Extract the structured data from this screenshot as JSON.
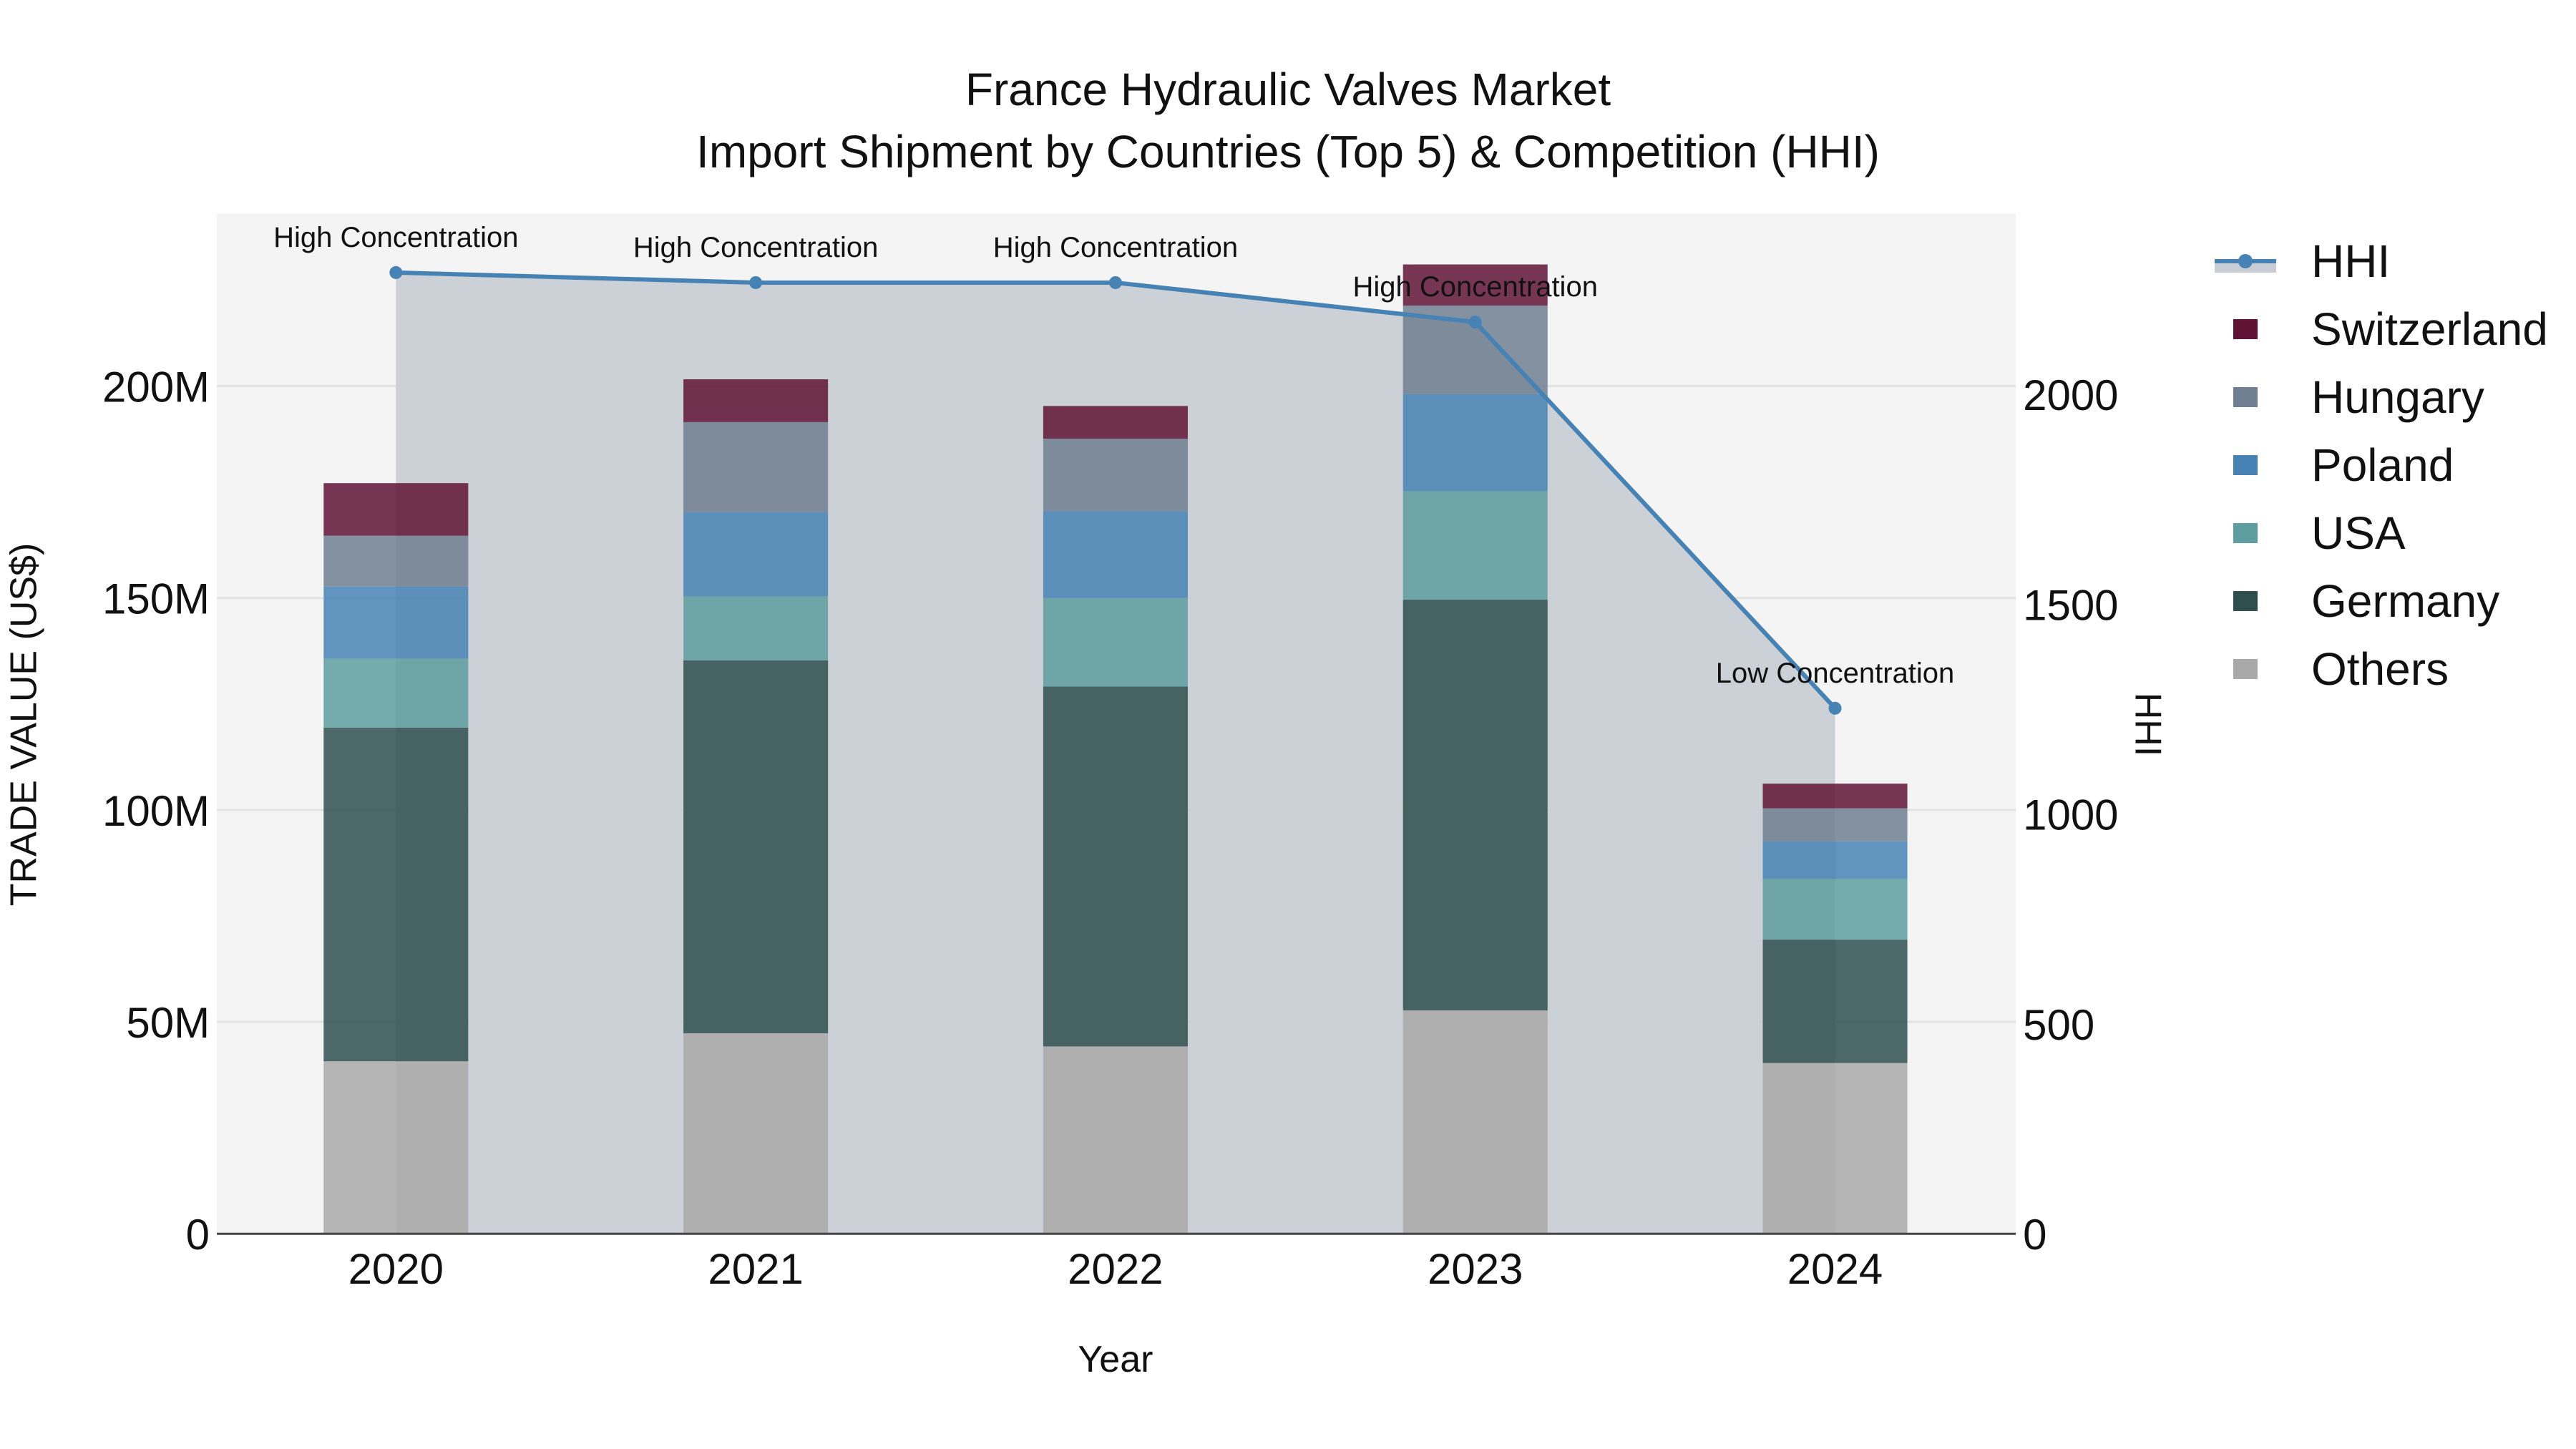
{
  "title_line1": "France Hydraulic Valves Market",
  "title_line2": "Import Shipment by Countries (Top 5) & Competition (HHI)",
  "colors": {
    "Switzerland": "#5f1436",
    "Hungary": "#707f91",
    "Poland": "#4682b4",
    "USA": "#5f9ea0",
    "Germany": "#2f4f4f",
    "Others": "#a9a9a9",
    "HHI_line": "#4682b4",
    "HHI_fill": "#c8ccd4",
    "plot_bg": "#f4f4f4"
  },
  "legend": [
    "HHI",
    "Switzerland",
    "Hungary",
    "Poland",
    "USA",
    "Germany",
    "Others"
  ],
  "chart_data": {
    "type": "bar",
    "stacked": true,
    "title": "France Hydraulic Valves Market — Import Shipment by Countries (Top 5) & Competition (HHI)",
    "xlabel": "Year",
    "ylabel": "TRADE VALUE (US$)",
    "y2label": "HHI",
    "categories": [
      "2020",
      "2021",
      "2022",
      "2023",
      "2024"
    ],
    "ylim": [
      0,
      240000000
    ],
    "y2lim": [
      0,
      2430
    ],
    "yticks": [
      "0",
      "50M",
      "100M",
      "150M",
      "200M"
    ],
    "y2ticks": [
      "0",
      "500",
      "1000",
      "1500",
      "2000"
    ],
    "series": [
      {
        "name": "Others",
        "values": [
          40.7,
          47.3,
          44.2,
          52.7,
          40.3
        ],
        "unit": "M US$"
      },
      {
        "name": "Germany",
        "values": [
          78.7,
          88.0,
          84.9,
          96.9,
          29.1
        ],
        "unit": "M US$"
      },
      {
        "name": "USA",
        "values": [
          16.3,
          15.1,
          20.9,
          25.6,
          14.3
        ],
        "unit": "M US$"
      },
      {
        "name": "Poland",
        "values": [
          17.0,
          19.8,
          20.5,
          22.9,
          8.9
        ],
        "unit": "M US$"
      },
      {
        "name": "Hungary",
        "values": [
          12.0,
          21.3,
          17.1,
          20.9,
          7.8
        ],
        "unit": "M US$"
      },
      {
        "name": "Switzerland",
        "values": [
          12.4,
          10.1,
          7.7,
          9.7,
          5.8
        ],
        "unit": "M US$"
      }
    ],
    "line_series": {
      "name": "HHI",
      "axis": "y2",
      "values": [
        2290,
        2266,
        2266,
        2172,
        1252
      ],
      "labels": [
        "High Concentration",
        "High Concentration",
        "High Concentration",
        "High Concentration",
        "Low Concentration"
      ]
    },
    "legend_position": "right",
    "grid": true
  }
}
